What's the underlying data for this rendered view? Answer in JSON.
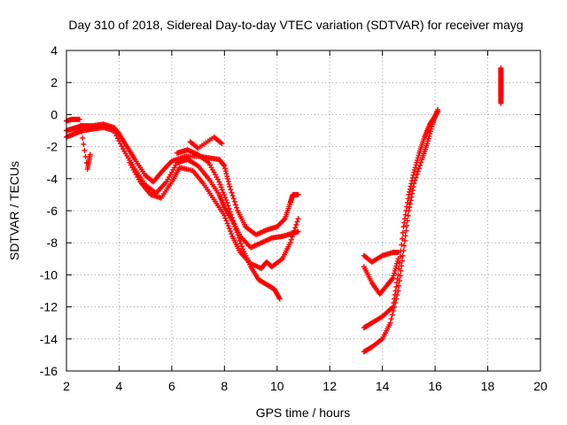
{
  "chart_data": {
    "type": "scatter",
    "title": "Day 310 of 2018, Sidereal Day-to-day VTEC variation (SDTVAR) for receiver mayg",
    "xlabel": "GPS time / hours",
    "ylabel": "SDTVAR / TECUs",
    "xlim": [
      2,
      20
    ],
    "ylim": [
      -16,
      4
    ],
    "xticks": [
      2,
      4,
      6,
      8,
      10,
      12,
      14,
      16,
      18,
      20
    ],
    "yticks": [
      4,
      2,
      0,
      -2,
      -4,
      -6,
      -8,
      -10,
      -12,
      -14,
      -16
    ],
    "grid": true,
    "marker": "+",
    "series_color": "#ff0000",
    "tracks": [
      {
        "name": "a",
        "points": [
          [
            2.0,
            -1.0
          ],
          [
            2.2,
            -0.9
          ],
          [
            2.4,
            -0.8
          ],
          [
            2.6,
            -0.7
          ],
          [
            3.0,
            -0.7
          ],
          [
            3.4,
            -0.6
          ],
          [
            3.8,
            -0.8
          ],
          [
            4.0,
            -1.2
          ],
          [
            4.3,
            -2.0
          ],
          [
            4.6,
            -2.8
          ],
          [
            5.0,
            -3.8
          ],
          [
            5.3,
            -4.2
          ],
          [
            5.6,
            -3.6
          ],
          [
            6.0,
            -2.9
          ],
          [
            6.5,
            -2.6
          ],
          [
            7.0,
            -2.6
          ],
          [
            7.4,
            -2.7
          ],
          [
            7.8,
            -2.8
          ],
          [
            8.0,
            -3.2
          ],
          [
            8.2,
            -4.5
          ],
          [
            8.5,
            -6.0
          ],
          [
            8.8,
            -7.0
          ],
          [
            9.2,
            -7.5
          ],
          [
            9.6,
            -7.2
          ],
          [
            10.0,
            -7.0
          ],
          [
            10.3,
            -6.5
          ],
          [
            10.5,
            -5.5
          ],
          [
            10.6,
            -5.0
          ],
          [
            10.8,
            -5.0
          ]
        ]
      },
      {
        "name": "b",
        "points": [
          [
            2.0,
            -1.4
          ],
          [
            2.3,
            -1.2
          ],
          [
            2.6,
            -1.0
          ],
          [
            3.0,
            -0.9
          ],
          [
            3.4,
            -0.8
          ],
          [
            3.8,
            -1.0
          ],
          [
            4.2,
            -2.3
          ],
          [
            4.6,
            -3.4
          ],
          [
            5.0,
            -4.4
          ],
          [
            5.4,
            -4.9
          ],
          [
            5.8,
            -4.2
          ],
          [
            6.2,
            -3.0
          ],
          [
            6.6,
            -2.8
          ],
          [
            7.0,
            -3.2
          ],
          [
            7.4,
            -4.0
          ],
          [
            7.8,
            -5.0
          ],
          [
            8.0,
            -5.8
          ],
          [
            8.3,
            -6.6
          ],
          [
            8.6,
            -7.6
          ],
          [
            9.0,
            -8.3
          ],
          [
            9.4,
            -8.0
          ],
          [
            9.8,
            -7.7
          ],
          [
            10.2,
            -7.6
          ],
          [
            10.6,
            -7.4
          ],
          [
            10.8,
            -7.3
          ]
        ]
      },
      {
        "name": "c",
        "points": [
          [
            4.4,
            -3.0
          ],
          [
            4.8,
            -4.2
          ],
          [
            5.2,
            -5.0
          ],
          [
            5.6,
            -5.2
          ],
          [
            6.0,
            -4.2
          ],
          [
            6.3,
            -3.3
          ],
          [
            6.8,
            -3.5
          ],
          [
            7.2,
            -4.3
          ],
          [
            7.6,
            -5.3
          ],
          [
            8.0,
            -6.3
          ],
          [
            8.3,
            -7.6
          ],
          [
            8.6,
            -8.6
          ],
          [
            9.0,
            -9.3
          ],
          [
            9.4,
            -9.6
          ],
          [
            9.6,
            -9.2
          ],
          [
            9.8,
            -9.5
          ],
          [
            10.2,
            -9.0
          ],
          [
            10.5,
            -8.0
          ],
          [
            10.8,
            -6.5
          ]
        ]
      },
      {
        "name": "d",
        "points": [
          [
            6.2,
            -2.4
          ],
          [
            6.6,
            -2.2
          ],
          [
            7.0,
            -2.5
          ],
          [
            7.4,
            -3.0
          ],
          [
            7.8,
            -4.2
          ],
          [
            8.1,
            -5.5
          ],
          [
            8.4,
            -7.0
          ],
          [
            8.7,
            -8.4
          ],
          [
            9.0,
            -9.5
          ],
          [
            9.3,
            -10.3
          ],
          [
            9.6,
            -10.6
          ],
          [
            9.9,
            -10.9
          ],
          [
            10.1,
            -11.5
          ]
        ]
      },
      {
        "name": "e",
        "points": [
          [
            6.7,
            -1.7
          ],
          [
            7.0,
            -2.1
          ],
          [
            7.6,
            -1.4
          ],
          [
            7.9,
            -1.8
          ]
        ]
      },
      {
        "name": "f",
        "points": [
          [
            2.0,
            -0.4
          ],
          [
            2.2,
            -0.3
          ],
          [
            2.5,
            -0.3
          ],
          [
            2.8,
            -3.4
          ],
          [
            2.9,
            -2.5
          ]
        ]
      },
      {
        "name": "g",
        "points": [
          [
            13.3,
            -8.8
          ],
          [
            13.6,
            -9.2
          ],
          [
            14.0,
            -8.8
          ],
          [
            14.4,
            -8.6
          ],
          [
            14.6,
            -8.6
          ]
        ]
      },
      {
        "name": "h",
        "points": [
          [
            13.3,
            -9.5
          ],
          [
            13.6,
            -10.5
          ],
          [
            13.9,
            -11.2
          ],
          [
            14.2,
            -10.6
          ],
          [
            14.4,
            -10.2
          ],
          [
            14.6,
            -9.0
          ]
        ]
      },
      {
        "name": "i",
        "points": [
          [
            13.3,
            -13.3
          ],
          [
            13.6,
            -13.0
          ],
          [
            14.0,
            -12.6
          ],
          [
            14.4,
            -12.0
          ],
          [
            14.6,
            -10.0
          ],
          [
            14.8,
            -7.0
          ],
          [
            15.0,
            -5.0
          ],
          [
            15.2,
            -3.6
          ],
          [
            15.4,
            -2.4
          ],
          [
            15.6,
            -1.4
          ],
          [
            15.8,
            -0.6
          ],
          [
            16.0,
            -0.1
          ],
          [
            16.1,
            0.2
          ]
        ]
      },
      {
        "name": "j",
        "points": [
          [
            13.3,
            -14.8
          ],
          [
            13.6,
            -14.5
          ],
          [
            14.0,
            -14.0
          ],
          [
            14.3,
            -13.0
          ],
          [
            14.6,
            -11.0
          ],
          [
            14.8,
            -8.5
          ],
          [
            15.0,
            -6.0
          ],
          [
            15.2,
            -4.3
          ],
          [
            15.5,
            -2.8
          ],
          [
            15.7,
            -1.8
          ],
          [
            15.9,
            -0.6
          ],
          [
            16.1,
            0.3
          ]
        ]
      },
      {
        "name": "k",
        "points": [
          [
            18.5,
            0.7
          ],
          [
            18.5,
            1.2
          ],
          [
            18.5,
            1.5
          ],
          [
            18.5,
            1.9
          ],
          [
            18.5,
            2.2
          ],
          [
            18.5,
            2.6
          ],
          [
            18.5,
            2.9
          ]
        ]
      }
    ]
  }
}
